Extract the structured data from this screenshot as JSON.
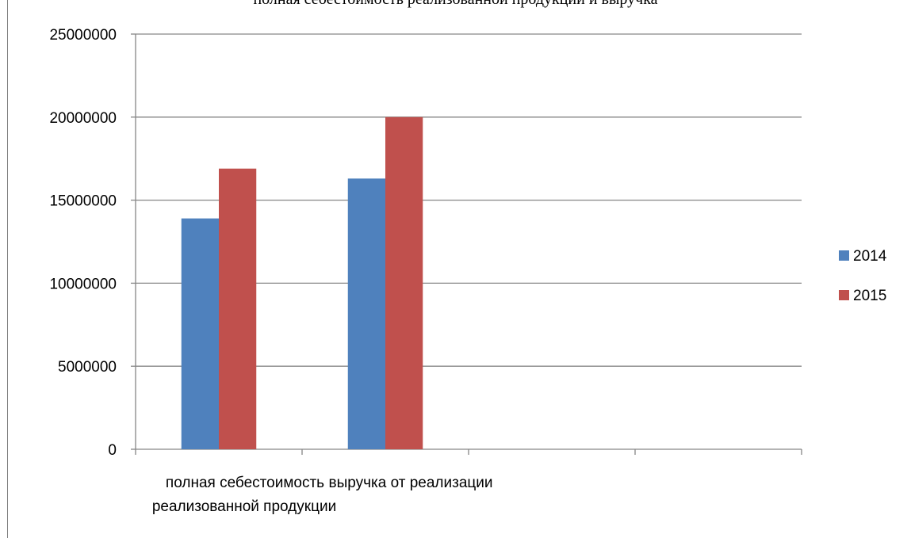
{
  "chart_data": {
    "type": "bar",
    "title": "полная себестоимость реализованной продукции и выручка",
    "categories": [
      [
        "полная себестоимость",
        "реализованной продукции"
      ],
      [
        "выручка от реализации"
      ],
      [
        ""
      ],
      [
        ""
      ]
    ],
    "series": [
      {
        "name": "2014",
        "color": "#4F81BD",
        "values": [
          13900000,
          16300000,
          null,
          null
        ]
      },
      {
        "name": "2015",
        "color": "#C0504D",
        "values": [
          16900000,
          20000000,
          null,
          null
        ]
      }
    ],
    "ylim": [
      0,
      25000000
    ],
    "yticks": [
      0,
      5000000,
      10000000,
      15000000,
      20000000,
      25000000
    ],
    "ytick_labels": [
      "0",
      "5000000",
      "10000000",
      "15000000",
      "20000000",
      "25000000"
    ],
    "grid": true,
    "legend_position": "right"
  }
}
